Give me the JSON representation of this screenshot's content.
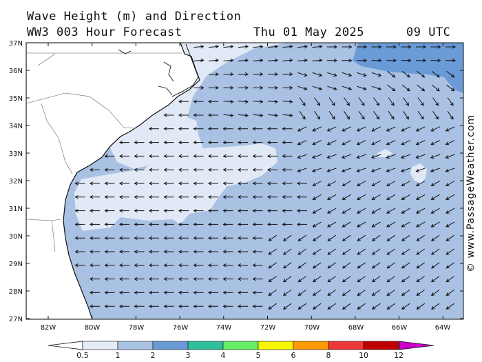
{
  "header": {
    "title_line1": "Wave Height (m) and Direction",
    "title_line2": "WW3 003 Hour Forecast",
    "date": "Thu 01 May 2025",
    "time": "09 UTC"
  },
  "axes": {
    "lat_labels": [
      "37N",
      "36N",
      "35N",
      "34N",
      "33N",
      "32N",
      "31N",
      "30N",
      "29N",
      "28N",
      "27N"
    ],
    "lon_labels": [
      "82W",
      "80W",
      "78W",
      "76W",
      "74W",
      "72W",
      "70W",
      "68W",
      "66W",
      "64W"
    ]
  },
  "credit": "© www.PassageWeather.com",
  "colorbar": {
    "labels": [
      "0.5",
      "1",
      "2",
      "3",
      "4",
      "5",
      "6",
      "8",
      "10",
      "12"
    ],
    "colors": [
      "#e6ecf6",
      "#a8c2e4",
      "#6b9bd6",
      "#2fbf9a",
      "#66ee66",
      "#f5f500",
      "#ff9a00",
      "#ee3838",
      "#c00000",
      "#cc00cc"
    ]
  },
  "map_colors": {
    "land": "#ffffff",
    "sea_lightest": "#e2e9f6",
    "sea_light": "#a9c1e3",
    "sea_mid": "#6b9bd6",
    "arrow": "#111111"
  }
}
